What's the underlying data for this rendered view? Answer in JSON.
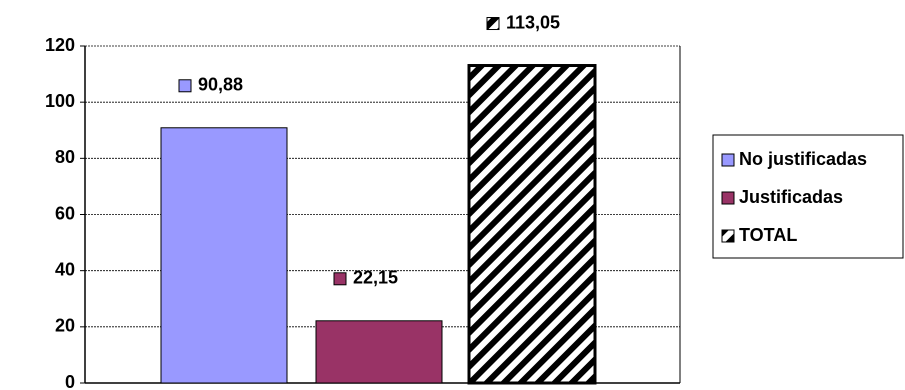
{
  "chart_data": {
    "type": "bar",
    "series": [
      {
        "name": "No justificadas",
        "color": "#9999ff",
        "values": [
          90.88
        ],
        "value_labels": [
          "90,88"
        ]
      },
      {
        "name": "Justificadas",
        "color": "#993366",
        "values": [
          22.15
        ],
        "value_labels": [
          "22,15"
        ]
      },
      {
        "name": "TOTAL",
        "color": "#000000",
        "pattern": "diagonal-hatch",
        "values": [
          113.05
        ],
        "value_labels": [
          "113,05"
        ]
      }
    ],
    "ylim": [
      0,
      120
    ],
    "yticks": [
      0,
      20,
      40,
      60,
      80,
      100,
      120
    ],
    "grid": true,
    "legend": "right"
  }
}
